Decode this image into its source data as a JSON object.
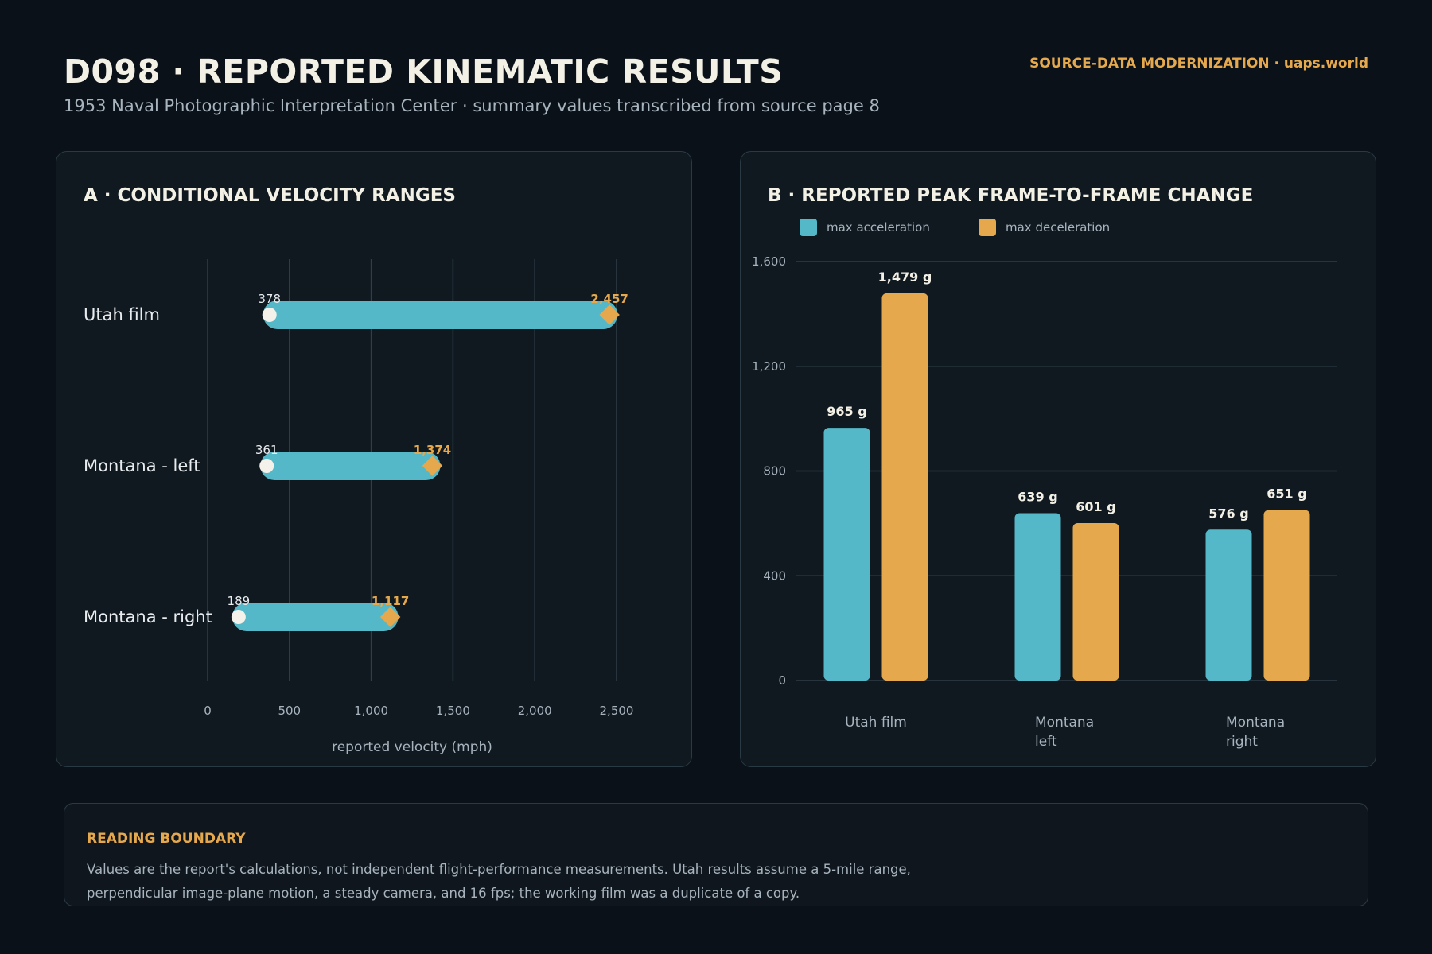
{
  "header": {
    "title": "D098 · REPORTED KINEMATIC RESULTS",
    "subtitle": "1953 Naval Photographic Interpretation Center · summary values transcribed from source page 8",
    "brand": "SOURCE-DATA MODERNIZATION · uaps.world"
  },
  "colors": {
    "background": "#0b1118",
    "panel": "#101920",
    "teal": "#55b8c8",
    "orange": "#e5a84d",
    "white_dot": "#f4f1ea",
    "grid": "#2f3e48"
  },
  "chart_data": [
    {
      "type": "range-bar",
      "title": "A · CONDITIONAL VELOCITY RANGES",
      "xlabel": "reported velocity (mph)",
      "xlim": [
        0,
        2500
      ],
      "xticks": [
        0,
        500,
        1000,
        1500,
        2000,
        2500
      ],
      "xtick_labels": [
        "0",
        "500",
        "1,000",
        "1,500",
        "2,000",
        "2,500"
      ],
      "grid": "vertical",
      "categories": [
        "Utah film",
        "Montana - left",
        "Montana - right"
      ],
      "low": [
        378,
        361,
        189
      ],
      "high": [
        2457,
        1374,
        1117
      ],
      "low_labels": [
        "378",
        "361",
        "189"
      ],
      "high_labels": [
        "2,457",
        "1,374",
        "1,117"
      ]
    },
    {
      "type": "bar",
      "title": "B · REPORTED PEAK FRAME-TO-FRAME CHANGE",
      "categories": [
        [
          "Utah film"
        ],
        [
          "Montana",
          "left"
        ],
        [
          "Montana",
          "right"
        ]
      ],
      "ylim": [
        0,
        1600
      ],
      "yticks": [
        0,
        400,
        800,
        1200,
        1600
      ],
      "ytick_labels": [
        "0",
        "400",
        "800",
        "1,200",
        "1,600"
      ],
      "grid": "horizontal",
      "legend": "top-left",
      "series": [
        {
          "name": "max acceleration",
          "values": [
            965,
            639,
            576
          ],
          "labels": [
            "965 g",
            "639 g",
            "576 g"
          ]
        },
        {
          "name": "max deceleration",
          "values": [
            1479,
            601,
            651
          ],
          "labels": [
            "1,479 g",
            "601 g",
            "651 g"
          ]
        }
      ]
    }
  ],
  "boundary": {
    "title": "READING BOUNDARY",
    "line1": "Values are the report's calculations, not independent flight-performance measurements. Utah results assume a 5-mile range,",
    "line2": "perpendicular image-plane motion, a steady camera, and 16 fps; the working film was a duplicate of a copy."
  }
}
